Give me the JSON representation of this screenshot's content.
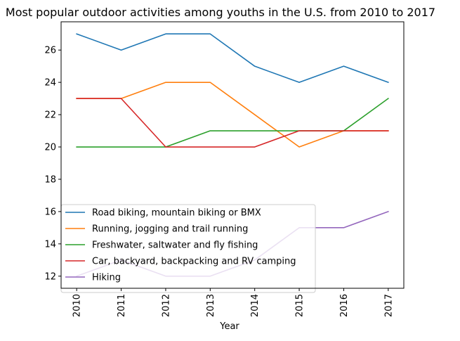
{
  "chart_data": {
    "type": "line",
    "title": "Most popular outdoor activities among youths in the U.S. from 2010 to 2017",
    "xlabel": "Year",
    "ylabel": "",
    "x": [
      2010,
      2011,
      2012,
      2013,
      2014,
      2015,
      2016,
      2017
    ],
    "xticks": [
      "2010",
      "2011",
      "2012",
      "2013",
      "2014",
      "2015",
      "2016",
      "2017"
    ],
    "yticks": [
      12,
      14,
      16,
      18,
      20,
      22,
      24,
      26
    ],
    "ylim": [
      11.25,
      27.75
    ],
    "grid": false,
    "legend_position": "lower-left",
    "series": [
      {
        "name": "Road biking, mountain biking or BMX",
        "color": "#1f77b4",
        "values": [
          27,
          26,
          27,
          27,
          25,
          24,
          25,
          24
        ]
      },
      {
        "name": "Running, jogging and trail running",
        "color": "#ff7f0e",
        "values": [
          23,
          23,
          24,
          24,
          22,
          20,
          21,
          21
        ]
      },
      {
        "name": "Freshwater, saltwater and fly fishing",
        "color": "#2ca02c",
        "values": [
          20,
          20,
          20,
          21,
          21,
          21,
          21,
          23
        ]
      },
      {
        "name": "Car, backyard, backpacking and RV camping",
        "color": "#d62728",
        "values": [
          23,
          23,
          20,
          20,
          20,
          21,
          21,
          21
        ]
      },
      {
        "name": "Hiking",
        "color": "#9467bd",
        "values": [
          12,
          13,
          12,
          12,
          13,
          15,
          15,
          16
        ]
      }
    ]
  }
}
